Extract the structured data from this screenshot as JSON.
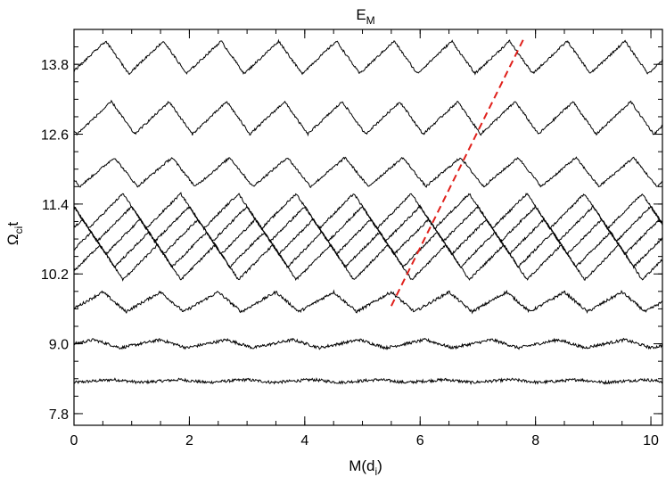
{
  "chart_data": {
    "type": "line",
    "title": "E",
    "title_sub": "M",
    "xlabel": "M(d",
    "xlabel_sub": "i",
    "xlabel_suffix": ")",
    "ylabel": "Ω",
    "ylabel_sub": "ci",
    "ylabel_suffix": "t",
    "xlim": [
      0,
      10.2
    ],
    "ylim": [
      7.6,
      14.4
    ],
    "x_ticks": [
      {
        "value": 0,
        "label": "0"
      },
      {
        "value": 2,
        "label": "2"
      },
      {
        "value": 4,
        "label": "4"
      },
      {
        "value": 6,
        "label": "6"
      },
      {
        "value": 8,
        "label": "8"
      },
      {
        "value": 10,
        "label": "10"
      }
    ],
    "y_ticks": [
      {
        "value": 7.8,
        "label": "7.8"
      },
      {
        "value": 9.0,
        "label": "9.0"
      },
      {
        "value": 10.2,
        "label": "10.2"
      },
      {
        "value": 11.4,
        "label": "11.4"
      },
      {
        "value": 12.6,
        "label": "12.6"
      },
      {
        "value": 13.8,
        "label": "13.8"
      }
    ],
    "grid": false,
    "series": [
      {
        "baseline": 8.36,
        "amplitude": 0.025,
        "wavelength": 1.15,
        "phase": 0.0,
        "noise": 0.025,
        "color": "#000000"
      },
      {
        "baseline": 9.0,
        "amplitude": 0.07,
        "wavelength": 1.15,
        "phase": 0.3,
        "noise": 0.025,
        "color": "#000000"
      },
      {
        "baseline": 9.72,
        "amplitude": 0.17,
        "wavelength": 1.0,
        "phase": 0.1,
        "noise": 0.025,
        "color": "#000000"
      },
      {
        "baseline": 10.4,
        "amplitude": 0.3,
        "wavelength": 1.0,
        "phase": 0.15,
        "noise": 0.02,
        "color": "#000000"
      },
      {
        "baseline": 10.62,
        "amplitude": 0.3,
        "wavelength": 1.0,
        "phase": 0.3,
        "noise": 0.02,
        "color": "#000000"
      },
      {
        "baseline": 10.84,
        "amplitude": 0.3,
        "wavelength": 1.0,
        "phase": 0.45,
        "noise": 0.02,
        "color": "#000000"
      },
      {
        "baseline": 11.06,
        "amplitude": 0.3,
        "wavelength": 1.0,
        "phase": 0.6,
        "noise": 0.02,
        "color": "#000000"
      },
      {
        "baseline": 11.28,
        "amplitude": 0.3,
        "wavelength": 1.0,
        "phase": 0.75,
        "noise": 0.02,
        "color": "#000000"
      },
      {
        "baseline": 11.95,
        "amplitude": 0.25,
        "wavelength": 1.0,
        "phase": 0.9,
        "noise": 0.02,
        "color": "#000000"
      },
      {
        "baseline": 12.88,
        "amplitude": 0.28,
        "wavelength": 1.0,
        "phase": 0.95,
        "noise": 0.02,
        "color": "#000000"
      },
      {
        "baseline": 13.92,
        "amplitude": 0.28,
        "wavelength": 1.0,
        "phase": 1.05,
        "noise": 0.02,
        "color": "#000000"
      }
    ],
    "annotation_line": {
      "x": [
        5.5,
        7.8
      ],
      "y": [
        9.65,
        14.25
      ],
      "color": "#e0201b",
      "dash": true
    }
  }
}
